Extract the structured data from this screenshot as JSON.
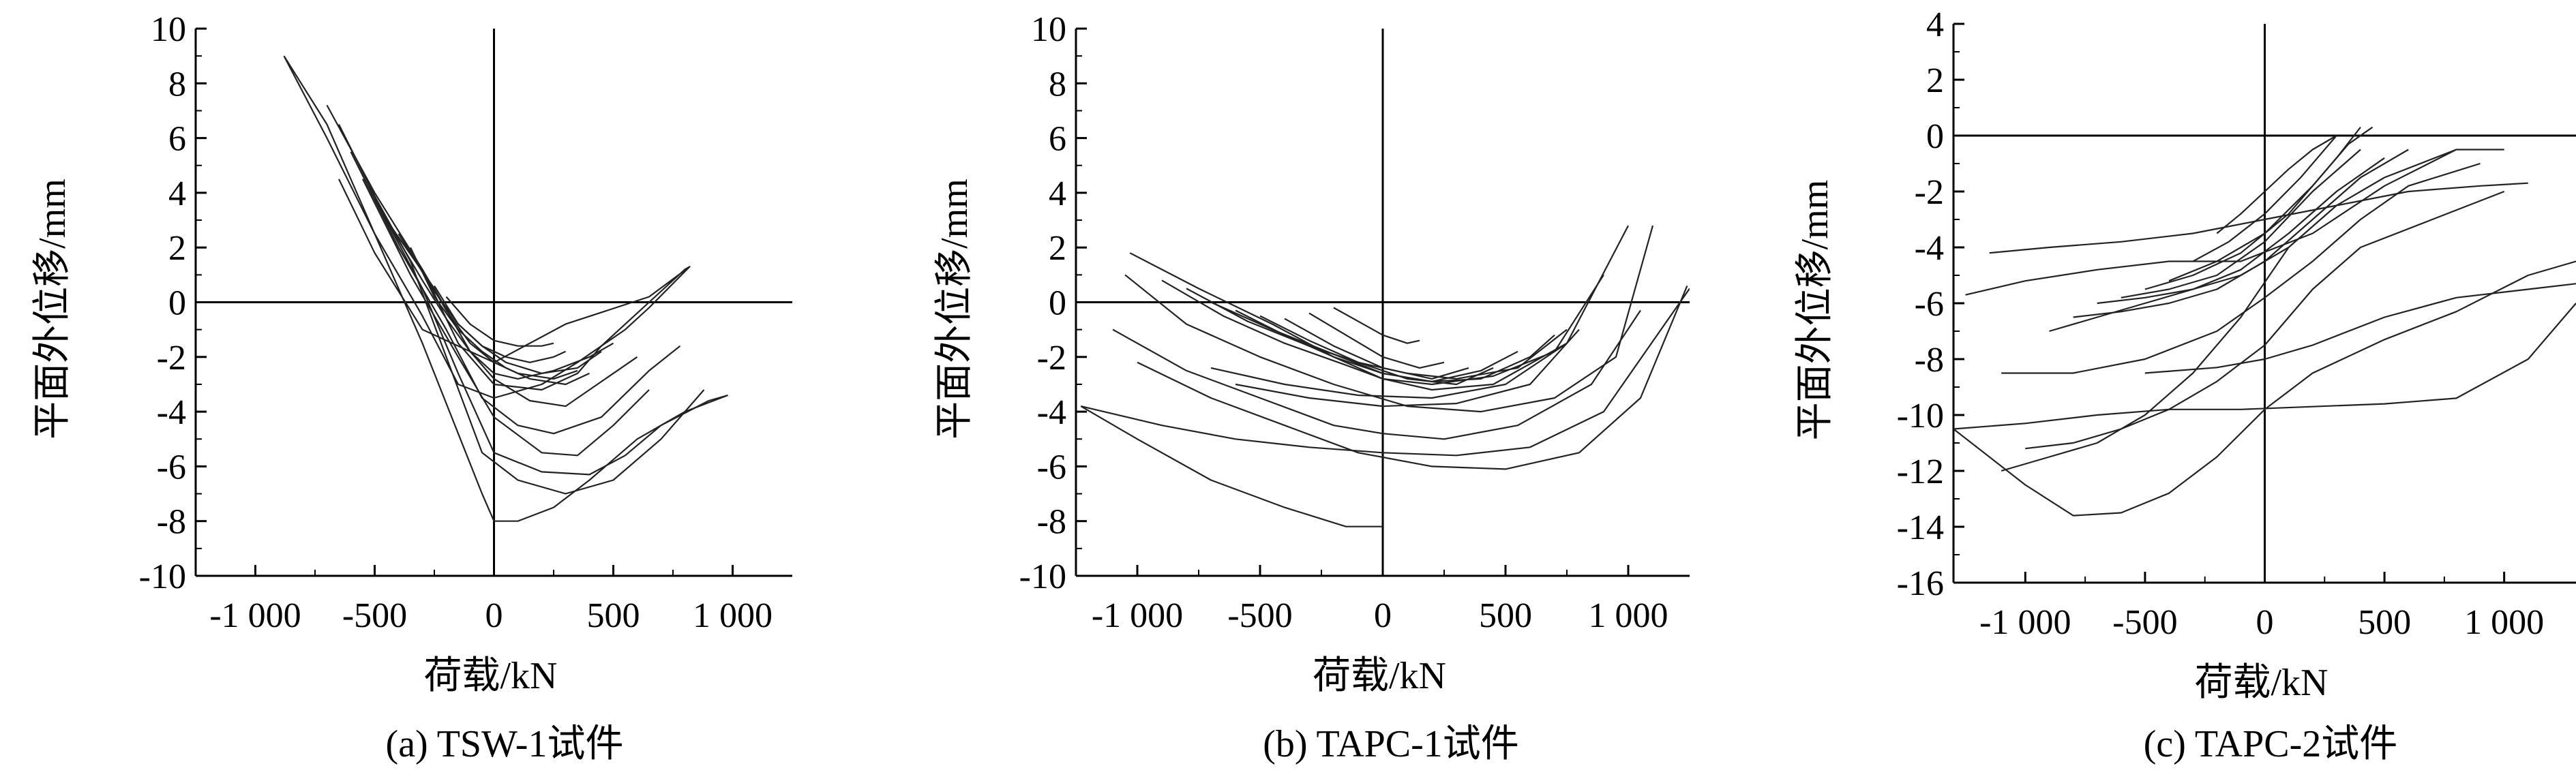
{
  "chart_data": [
    {
      "type": "line",
      "caption": "(a) TSW-1试件",
      "xlabel": "荷载/kN",
      "ylabel": "平面外位移/mm",
      "xlim": [
        -1250,
        1250
      ],
      "ylim": [
        -10,
        10
      ],
      "xticks": [
        -1000,
        -500,
        0,
        500,
        1000
      ],
      "xtick_labels": [
        "-1 000",
        "-500",
        "0",
        "500",
        "1 000"
      ],
      "yticks": [
        -10,
        -8,
        -6,
        -4,
        -2,
        0,
        2,
        4,
        6,
        8,
        10
      ],
      "ytick_labels": [
        "-10",
        "-8",
        "-6",
        "-4",
        "-2",
        "0",
        "2",
        "4",
        "6",
        "8",
        "10"
      ],
      "series": [
        {
          "x": [
            -880,
            -700,
            -500,
            -300,
            -150,
            0,
            200,
            350,
            450,
            550,
            650,
            820
          ],
          "y": [
            9.0,
            6.0,
            2.5,
            -0.5,
            -3.0,
            -3.5,
            -3.0,
            -2.2,
            -1.6,
            -1.0,
            -0.2,
            1.3
          ]
        },
        {
          "x": [
            -700,
            -500,
            -300,
            -150,
            0,
            200,
            350,
            450,
            550,
            650,
            800,
            820,
            650,
            300,
            0,
            -300,
            -500,
            -650
          ],
          "y": [
            7.2,
            4.0,
            1.2,
            -1.5,
            -3.0,
            -3.2,
            -2.6,
            -1.6,
            -0.8,
            0.0,
            1.2,
            1.3,
            0.2,
            -0.8,
            -2.2,
            -1.0,
            1.8,
            4.5
          ]
        },
        {
          "x": [
            -650,
            -450,
            -250,
            -100,
            0,
            150,
            300,
            400,
            600
          ],
          "y": [
            6.5,
            3.0,
            0.5,
            -1.8,
            -2.8,
            -3.6,
            -3.8,
            -3.2,
            -2.0
          ]
        },
        {
          "x": [
            -600,
            -400,
            -200,
            -50,
            100,
            250,
            450,
            650,
            780
          ],
          "y": [
            5.5,
            2.0,
            -1.0,
            -3.5,
            -4.5,
            -4.8,
            -4.2,
            -2.5,
            -1.6
          ]
        },
        {
          "x": [
            -550,
            -350,
            -150,
            0,
            200,
            350,
            500,
            650
          ],
          "y": [
            4.5,
            1.0,
            -2.0,
            -4.2,
            -5.5,
            -5.6,
            -4.5,
            -3.2
          ]
        },
        {
          "x": [
            -500,
            -300,
            -150,
            0,
            200,
            400,
            550,
            700,
            900,
            980
          ],
          "y": [
            3.8,
            0.5,
            -2.6,
            -5.5,
            -6.2,
            -6.3,
            -5.6,
            -4.5,
            -3.6,
            -3.4
          ]
        },
        {
          "x": [
            -520,
            -350,
            -200,
            -50,
            100,
            300,
            500,
            700,
            880
          ],
          "y": [
            4.2,
            1.5,
            -2.0,
            -5.5,
            -6.5,
            -7.0,
            -6.5,
            -5.0,
            -3.2
          ]
        },
        {
          "x": [
            -880,
            -700,
            -500,
            -300,
            -150,
            -50,
            0,
            100,
            250,
            400,
            600,
            800,
            980
          ],
          "y": [
            9.0,
            6.5,
            2.5,
            -1.5,
            -4.8,
            -7.0,
            -8.0,
            -8.0,
            -7.5,
            -6.5,
            -5.0,
            -4.0,
            -3.4
          ]
        },
        {
          "x": [
            -450,
            -300,
            -200,
            -100,
            0,
            100,
            250,
            400,
            500
          ],
          "y": [
            3.0,
            0.8,
            -0.6,
            -1.8,
            -2.6,
            -2.8,
            -2.5,
            -2.0,
            -1.5
          ]
        },
        {
          "x": [
            -400,
            -250,
            -150,
            -50,
            50,
            200,
            350,
            450
          ],
          "y": [
            2.5,
            0.4,
            -0.8,
            -1.6,
            -2.2,
            -2.6,
            -2.4,
            -1.8
          ]
        },
        {
          "x": [
            -350,
            -250,
            -150,
            -50,
            50,
            150,
            300,
            400
          ],
          "y": [
            2.0,
            0.2,
            -1.0,
            -1.8,
            -2.4,
            -2.8,
            -3.0,
            -2.6
          ]
        },
        {
          "x": [
            -300,
            -200,
            -100,
            0,
            100,
            250,
            350
          ],
          "y": [
            1.2,
            -0.3,
            -1.5,
            -2.2,
            -2.6,
            -2.8,
            -2.5
          ]
        },
        {
          "x": [
            -250,
            -150,
            -50,
            50,
            150,
            250,
            300
          ],
          "y": [
            0.6,
            -0.8,
            -1.6,
            -2.0,
            -2.2,
            -2.0,
            -1.8
          ]
        },
        {
          "x": [
            -200,
            -100,
            0,
            100,
            200,
            250
          ],
          "y": [
            0.2,
            -0.8,
            -1.4,
            -1.6,
            -1.6,
            -1.5
          ]
        }
      ]
    },
    {
      "type": "line",
      "caption": "(b) TAPC-1试件",
      "xlabel": "荷载/kN",
      "ylabel": "平面外位移/mm",
      "xlim": [
        -1250,
        1250
      ],
      "ylim": [
        -10,
        10
      ],
      "xticks": [
        -1000,
        -500,
        0,
        500,
        1000
      ],
      "xtick_labels": [
        "-1 000",
        "-500",
        "0",
        "500",
        "1 000"
      ],
      "yticks": [
        -10,
        -8,
        -6,
        -4,
        -2,
        0,
        2,
        4,
        6,
        8,
        10
      ],
      "ytick_labels": [
        "-10",
        "-8",
        "-6",
        "-4",
        "-2",
        "0",
        "2",
        "4",
        "6",
        "8",
        "10"
      ],
      "series": [
        {
          "x": [
            -1230,
            -1000,
            -700,
            -400,
            -150,
            0
          ],
          "y": [
            -3.8,
            -5.0,
            -6.5,
            -7.5,
            -8.2,
            -8.2
          ]
        },
        {
          "x": [
            -1230,
            -900,
            -600,
            -300,
            0,
            300,
            600,
            900,
            1250
          ],
          "y": [
            -3.8,
            -4.5,
            -5.0,
            -5.3,
            -5.5,
            -5.6,
            -5.3,
            -4.0,
            0.5
          ]
        },
        {
          "x": [
            -1100,
            -800,
            -500,
            -200,
            0,
            250,
            550,
            850,
            1050
          ],
          "y": [
            -1.0,
            -2.5,
            -3.5,
            -4.5,
            -4.8,
            -5.0,
            -4.5,
            -3.0,
            -0.3
          ]
        },
        {
          "x": [
            -1050,
            -800,
            -500,
            -200,
            100,
            400,
            700,
            950,
            1100
          ],
          "y": [
            1.0,
            -0.8,
            -2.0,
            -3.0,
            -3.8,
            -4.0,
            -3.5,
            -2.0,
            2.8
          ]
        },
        {
          "x": [
            -1000,
            -700,
            -400,
            -100,
            200,
            500,
            800,
            1050,
            1240
          ],
          "y": [
            -2.2,
            -3.5,
            -4.5,
            -5.5,
            -6.0,
            -6.1,
            -5.5,
            -3.5,
            0.6
          ]
        },
        {
          "x": [
            -1030,
            -750,
            -450,
            -200,
            0,
            200,
            450,
            750,
            1000
          ],
          "y": [
            1.8,
            0.5,
            -0.8,
            -2.0,
            -2.8,
            -3.2,
            -3.0,
            -1.5,
            2.8
          ]
        },
        {
          "x": [
            -900,
            -650,
            -400,
            -150,
            0,
            200,
            450,
            700,
            900
          ],
          "y": [
            0.8,
            -0.5,
            -1.5,
            -2.3,
            -2.8,
            -3.0,
            -2.7,
            -1.8,
            1.0
          ]
        },
        {
          "x": [
            -800,
            -550,
            -300,
            -100,
            100,
            300,
            550,
            750
          ],
          "y": [
            0.5,
            -0.7,
            -1.6,
            -2.2,
            -2.6,
            -2.8,
            -2.4,
            -1.0
          ]
        },
        {
          "x": [
            -700,
            -450,
            -200,
            0,
            200,
            400,
            600,
            700
          ],
          "y": [
            0.0,
            -1.0,
            -1.9,
            -2.6,
            -2.9,
            -2.8,
            -2.0,
            -1.2
          ]
        },
        {
          "x": [
            -600,
            -400,
            -200,
            0,
            200,
            400,
            550
          ],
          "y": [
            -0.3,
            -1.2,
            -2.0,
            -2.6,
            -2.9,
            -2.5,
            -1.8
          ]
        },
        {
          "x": [
            -500,
            -300,
            -100,
            100,
            300,
            450
          ],
          "y": [
            -0.5,
            -1.4,
            -2.2,
            -2.8,
            -3.0,
            -2.4
          ]
        },
        {
          "x": [
            -400,
            -200,
            0,
            200,
            350
          ],
          "y": [
            -0.6,
            -1.6,
            -2.4,
            -2.8,
            -2.4
          ]
        },
        {
          "x": [
            -300,
            -150,
            0,
            150,
            250
          ],
          "y": [
            -0.4,
            -1.2,
            -2.0,
            -2.4,
            -2.2
          ]
        },
        {
          "x": [
            -200,
            -100,
            0,
            100,
            150
          ],
          "y": [
            -0.2,
            -0.7,
            -1.2,
            -1.5,
            -1.4
          ]
        },
        {
          "x": [
            -600,
            -300,
            0,
            300,
            600,
            800
          ],
          "y": [
            -3.0,
            -3.5,
            -3.8,
            -3.7,
            -3.0,
            -1.0
          ]
        },
        {
          "x": [
            -700,
            -400,
            -100,
            200,
            500,
            750
          ],
          "y": [
            -2.4,
            -3.0,
            -3.4,
            -3.5,
            -3.0,
            -1.5
          ]
        }
      ]
    },
    {
      "type": "line",
      "caption": "(c) TAPC-2试件",
      "xlabel": "荷载/kN",
      "ylabel": "平面外位移/mm",
      "xlim": [
        -1300,
        1300
      ],
      "ylim": [
        -16,
        4
      ],
      "xticks": [
        -1000,
        -500,
        0,
        500,
        1000
      ],
      "xtick_labels": [
        "-1 000",
        "-500",
        "0",
        "500",
        "1 000"
      ],
      "yticks": [
        -16,
        -14,
        -12,
        -10,
        -8,
        -6,
        -4,
        -2,
        0,
        2,
        4
      ],
      "ytick_labels": [
        "-16",
        "-14",
        "-12",
        "-10",
        "-8",
        "-6",
        "-4",
        "-2",
        "0",
        "2",
        "4"
      ],
      "series": [
        {
          "x": [
            -1300,
            -1000,
            -800,
            -600,
            -400,
            -200,
            0,
            200,
            500,
            800,
            1100,
            1300
          ],
          "y": [
            -10.5,
            -12.5,
            -13.6,
            -13.5,
            -12.8,
            -11.5,
            -9.8,
            -8.5,
            -7.3,
            -6.3,
            -5.0,
            -4.5
          ]
        },
        {
          "x": [
            -1300,
            -1000,
            -700,
            -400,
            -100,
            200,
            500,
            800,
            1100,
            1300
          ],
          "y": [
            -10.5,
            -10.3,
            -10.0,
            -9.8,
            -9.8,
            -9.7,
            -9.6,
            -9.4,
            -8.0,
            -6.0
          ]
        },
        {
          "x": [
            -1250,
            -1000,
            -700,
            -400,
            -100,
            200,
            500,
            800,
            1000
          ],
          "y": [
            -5.7,
            -5.2,
            -4.8,
            -4.5,
            -4.5,
            -3.5,
            -1.8,
            -0.5,
            -0.5
          ]
        },
        {
          "x": [
            -1100,
            -800,
            -500,
            -200,
            0,
            200,
            400,
            600,
            900
          ],
          "y": [
            -8.5,
            -8.5,
            -8.0,
            -7.0,
            -5.8,
            -4.5,
            -3.0,
            -1.8,
            -1.0
          ]
        },
        {
          "x": [
            -1000,
            -800,
            -600,
            -400,
            -200,
            0,
            200,
            400,
            700,
            1000
          ],
          "y": [
            -11.2,
            -11.0,
            -10.5,
            -9.8,
            -8.8,
            -7.5,
            -5.5,
            -4.0,
            -3.0,
            -2.0
          ]
        },
        {
          "x": [
            -900,
            -700,
            -500,
            -300,
            -100,
            100,
            300,
            500,
            800
          ],
          "y": [
            -7.0,
            -6.5,
            -6.0,
            -5.5,
            -5.0,
            -4.0,
            -2.5,
            -1.5,
            -0.5
          ]
        },
        {
          "x": [
            -800,
            -600,
            -400,
            -200,
            0,
            200,
            400,
            600
          ],
          "y": [
            -6.5,
            -6.3,
            -6.0,
            -5.5,
            -4.5,
            -3.0,
            -1.5,
            -0.5
          ]
        },
        {
          "x": [
            -700,
            -500,
            -300,
            -100,
            100,
            300,
            500
          ],
          "y": [
            -6.0,
            -5.8,
            -5.5,
            -4.8,
            -3.5,
            -2.0,
            -0.8
          ]
        },
        {
          "x": [
            -600,
            -400,
            -200,
            0,
            200,
            400
          ],
          "y": [
            -5.8,
            -5.5,
            -5.0,
            -3.8,
            -2.0,
            -0.5
          ]
        },
        {
          "x": [
            -500,
            -300,
            -100,
            100,
            300,
            400
          ],
          "y": [
            -5.5,
            -5.0,
            -4.2,
            -2.8,
            -0.8,
            0.3
          ]
        },
        {
          "x": [
            -400,
            -200,
            0,
            200,
            350,
            450
          ],
          "y": [
            -5.2,
            -4.5,
            -3.5,
            -1.8,
            -0.3,
            0.3
          ]
        },
        {
          "x": [
            -300,
            -150,
            0,
            150,
            300
          ],
          "y": [
            -4.5,
            -3.8,
            -2.8,
            -1.5,
            0.0
          ]
        },
        {
          "x": [
            -200,
            -100,
            0,
            100,
            200,
            300
          ],
          "y": [
            -3.5,
            -2.8,
            -2.0,
            -1.2,
            -0.5,
            0.0
          ]
        },
        {
          "x": [
            -1100,
            -900,
            -700,
            -500,
            -300,
            -100,
            100
          ],
          "y": [
            -12.0,
            -11.5,
            -11.0,
            -10.0,
            -8.5,
            -6.5,
            -4.0
          ]
        },
        {
          "x": [
            -500,
            -200,
            0,
            200,
            500,
            800,
            1100,
            1300
          ],
          "y": [
            -8.5,
            -8.3,
            -8.0,
            -7.5,
            -6.5,
            -5.8,
            -5.5,
            -5.3
          ]
        },
        {
          "x": [
            -1150,
            -900,
            -600,
            -300,
            0,
            300,
            600,
            900,
            1100
          ],
          "y": [
            -4.2,
            -4.0,
            -3.8,
            -3.5,
            -3.0,
            -2.5,
            -2.0,
            -1.8,
            -1.7
          ]
        }
      ]
    }
  ]
}
